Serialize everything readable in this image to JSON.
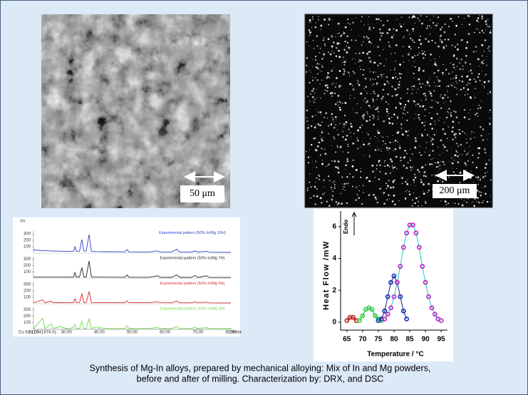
{
  "images": [
    {
      "scale_label": "50 μm"
    },
    {
      "scale_label": "200 μm"
    }
  ],
  "chart_data": [
    {
      "type": "line",
      "ylabel": "cts",
      "annotation": "Cu Ka (1.541874 A)",
      "xlabel": "2theta",
      "xlim": [
        20,
        80
      ],
      "xticks": [
        {
          "value": 20,
          "label": "20.00"
        },
        {
          "value": 30,
          "label": "30.00"
        },
        {
          "value": 40,
          "label": "40.00"
        },
        {
          "value": 50,
          "label": "50.00"
        },
        {
          "value": 60,
          "label": "60.00"
        },
        {
          "value": 70,
          "label": "70.00"
        },
        {
          "value": 80,
          "label": "80.00"
        }
      ],
      "x": [
        20,
        22.8,
        23.5,
        25.4,
        26,
        28,
        30,
        31,
        32.2,
        32.6,
        33,
        34,
        34.7,
        35.3,
        36,
        36.9,
        37.6,
        39,
        42,
        47.8,
        48.4,
        49,
        55,
        57.8,
        58.5,
        62,
        63.5,
        64.5,
        68,
        69.1,
        70,
        72.6,
        73.5,
        80
      ],
      "panels": [
        {
          "name": "Experimental pattern (50% In/Mg 10H)",
          "color": "#3340d0",
          "ylim": [
            0,
            350
          ],
          "yticks": [
            100,
            200,
            300
          ],
          "values": [
            50,
            40,
            38,
            35,
            33,
            30,
            28,
            26,
            30,
            100,
            30,
            30,
            210,
            35,
            30,
            290,
            30,
            25,
            22,
            20,
            55,
            20,
            18,
            35,
            18,
            16,
            60,
            16,
            15,
            35,
            15,
            30,
            14,
            12
          ]
        },
        {
          "name": "Experimental pattern (50% In/Mg 7H)",
          "color": "#222222",
          "ylim": [
            0,
            350
          ],
          "yticks": [
            100,
            200,
            300
          ],
          "values": [
            20,
            20,
            20,
            20,
            20,
            20,
            20,
            20,
            22,
            90,
            22,
            22,
            170,
            22,
            22,
            270,
            22,
            20,
            20,
            18,
            55,
            18,
            18,
            40,
            18,
            17,
            55,
            17,
            16,
            45,
            16,
            40,
            15,
            15
          ]
        },
        {
          "name": "Experimental pattern (50% In/Mg 5H)",
          "color": "#dd2a2a",
          "ylim": [
            0,
            350
          ],
          "yticks": [
            100,
            200,
            300
          ],
          "values": [
            15,
            60,
            15,
            40,
            15,
            18,
            15,
            15,
            18,
            80,
            18,
            18,
            160,
            18,
            18,
            190,
            18,
            16,
            16,
            15,
            45,
            15,
            15,
            30,
            15,
            14,
            40,
            14,
            14,
            30,
            14,
            25,
            13,
            12
          ]
        },
        {
          "name": "Experimental pattern (50% In/Mg 3H)",
          "color": "#6cdc4a",
          "ylim": [
            0,
            350
          ],
          "yticks": [
            100,
            200,
            300
          ],
          "values": [
            5,
            170,
            10,
            80,
            10,
            40,
            8,
            8,
            30,
            70,
            10,
            10,
            120,
            10,
            10,
            160,
            10,
            30,
            8,
            8,
            50,
            8,
            8,
            25,
            8,
            8,
            40,
            8,
            8,
            30,
            8,
            25,
            8,
            8
          ]
        }
      ]
    },
    {
      "type": "scatter",
      "ylabel": "Heat Flow /mW",
      "xlabel": "Temperature / °C",
      "annotation": "Endo",
      "xlim": [
        63,
        97
      ],
      "xticks": [
        65,
        70,
        75,
        80,
        85,
        90,
        95
      ],
      "ylim": [
        -0.5,
        6.8
      ],
      "yticks": [
        0,
        2,
        4,
        6
      ],
      "series": [
        {
          "color": "#c02020",
          "line_color": "#801010",
          "x": [
            65,
            66,
            67,
            68
          ],
          "values": [
            0.1,
            0.3,
            0.3,
            0.1
          ]
        },
        {
          "color": "#30d040",
          "line_color": "#20a030",
          "x": [
            69,
            70,
            71,
            72,
            73,
            74,
            75,
            76
          ],
          "values": [
            0.1,
            0.4,
            0.8,
            0.9,
            0.8,
            0.4,
            0.2,
            0.1
          ]
        },
        {
          "color": "#1030c0",
          "line_color": "#102080",
          "x": [
            75,
            76,
            77,
            78,
            79,
            80,
            81,
            82,
            83,
            84
          ],
          "values": [
            0.1,
            0.2,
            0.7,
            1.6,
            2.5,
            2.9,
            2.5,
            1.6,
            0.7,
            0.2
          ]
        },
        {
          "color": "#c020c0",
          "line_color": "#20c8c8",
          "x": [
            77,
            78,
            79,
            80,
            81,
            82,
            83,
            84,
            85,
            86,
            87,
            88,
            89,
            90,
            91,
            92,
            93,
            94,
            95
          ],
          "values": [
            0.2,
            0.5,
            0.9,
            1.6,
            2.5,
            3.5,
            4.7,
            5.6,
            6.1,
            6.1,
            5.6,
            4.7,
            3.5,
            2.5,
            1.6,
            0.9,
            0.5,
            0.2,
            0.1
          ]
        }
      ]
    }
  ],
  "caption": {
    "lines": [
      "Synthesis of Mg-In alloys, prepared by mechanical alloying:  Mix of In and Mg powders,",
      "before and after of milling. Characterization by: DRX, and DSC"
    ]
  }
}
